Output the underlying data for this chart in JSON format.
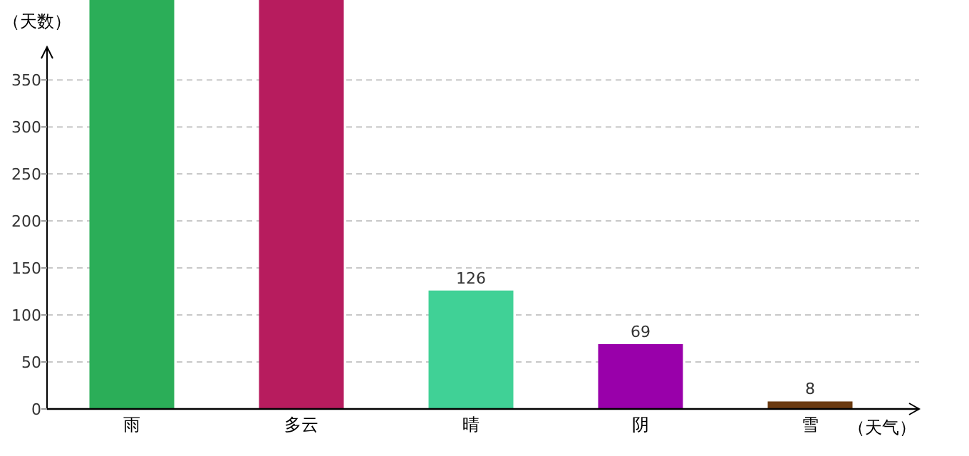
{
  "chart_data": {
    "type": "bar",
    "xlabel": "（天气）",
    "ylabel": "（天数）",
    "categories": [
      "雨",
      "多云",
      "晴",
      "阴",
      "雪"
    ],
    "values": [
      435,
      435,
      126,
      69,
      8
    ],
    "colors": [
      "#2bae58",
      "#b71c5e",
      "#40d196",
      "#9900aa",
      "#6b3a10"
    ],
    "value_labels": [
      null,
      null,
      "126",
      "69",
      "8"
    ],
    "ylim": [
      0,
      435
    ],
    "yticks": [
      0,
      50,
      100,
      150,
      200,
      250,
      300,
      350
    ],
    "grid": "y"
  }
}
